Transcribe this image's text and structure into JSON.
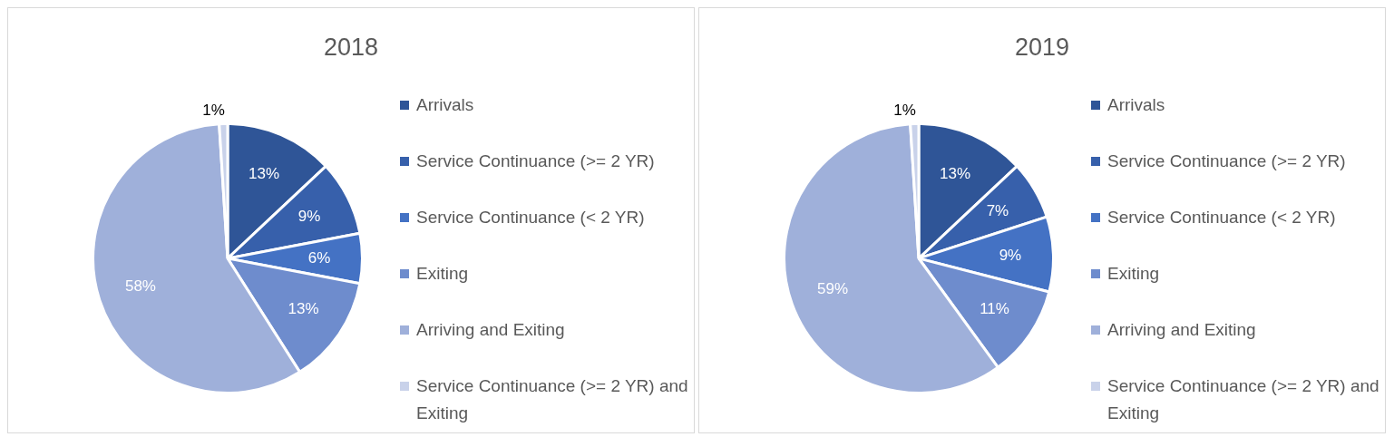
{
  "chart_data": [
    {
      "type": "pie",
      "title": "2018",
      "categories": [
        "Arrivals",
        "Service Continuance (>= 2 YR)",
        "Service Continuance (< 2 YR)",
        "Exiting",
        "Arriving and Exiting",
        "Service Continuance (>= 2 YR) and Exiting"
      ],
      "values": [
        13,
        9,
        6,
        13,
        58,
        1
      ],
      "value_labels": [
        "13%",
        "9%",
        "6%",
        "13%",
        "58%",
        "1%"
      ],
      "colors": [
        "#2f5597",
        "#3760ab",
        "#4472c4",
        "#6e8ccd",
        "#9fb0da",
        "#c9d2ea"
      ],
      "legend": "right"
    },
    {
      "type": "pie",
      "title": "2019",
      "categories": [
        "Arrivals",
        "Service Continuance (>= 2 YR)",
        "Service Continuance (< 2 YR)",
        "Exiting",
        "Arriving and Exiting",
        "Service Continuance (>= 2 YR) and Exiting"
      ],
      "values": [
        13,
        7,
        9,
        11,
        59,
        1
      ],
      "value_labels": [
        "13%",
        "7%",
        "9%",
        "11%",
        "59%",
        "1%"
      ],
      "colors": [
        "#2f5597",
        "#3760ab",
        "#4472c4",
        "#6e8ccd",
        "#9fb0da",
        "#c9d2ea"
      ],
      "legend": "right"
    }
  ]
}
